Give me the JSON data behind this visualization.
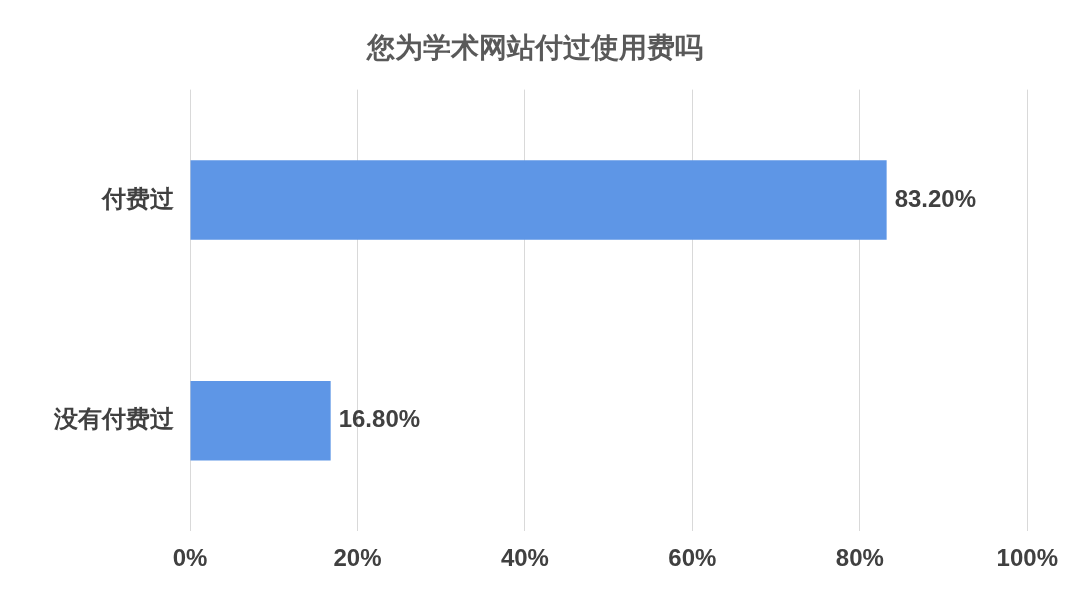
{
  "chart_data": {
    "type": "bar",
    "orientation": "horizontal",
    "title": "您为学术网站付过使用费吗",
    "categories": [
      "付费过",
      "没有付费过"
    ],
    "values": [
      83.2,
      16.8
    ],
    "color": "#5e96e6",
    "value_labels": [
      "83.20%",
      "16.80%"
    ],
    "xlim": [
      0,
      100
    ],
    "xticks": [
      {
        "value": 0,
        "label": "0%"
      },
      {
        "value": 20,
        "label": "20%"
      },
      {
        "value": 40,
        "label": "40%"
      },
      {
        "value": 60,
        "label": "60%"
      },
      {
        "value": 80,
        "label": "80%"
      },
      {
        "value": 100,
        "label": "100%"
      }
    ],
    "grid": "x"
  }
}
